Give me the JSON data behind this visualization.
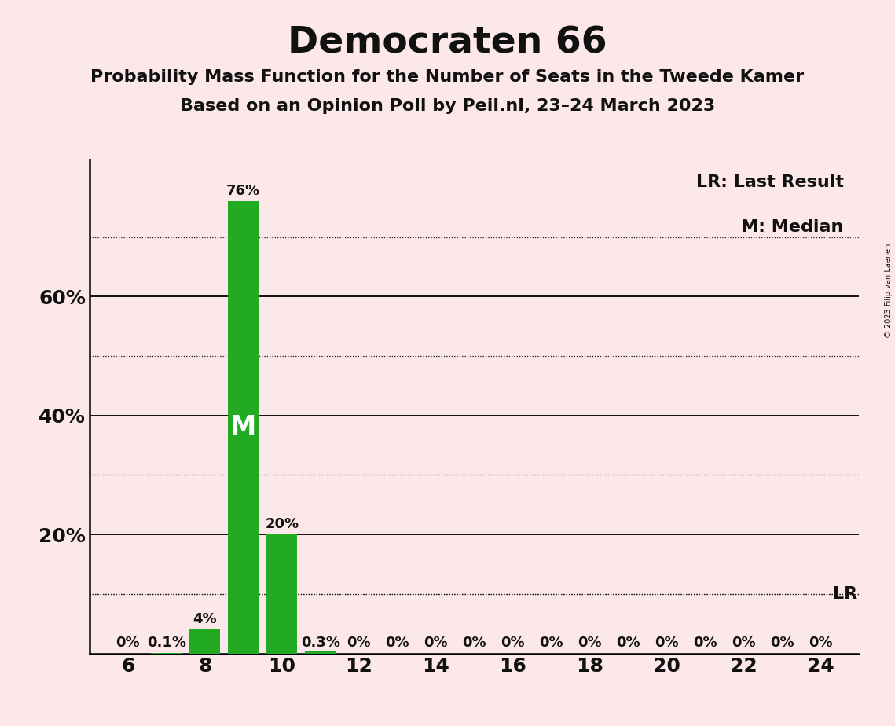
{
  "title": "Democraten 66",
  "subtitle1": "Probability Mass Function for the Number of Seats in the Tweede Kamer",
  "subtitle2": "Based on an Opinion Poll by Peil.nl, 23–24 March 2023",
  "copyright": "© 2023 Filip van Laenen",
  "background_color": "#fce8e8",
  "bar_color": "#22aa22",
  "x_values": [
    6,
    7,
    8,
    9,
    10,
    11,
    12,
    13,
    14,
    15,
    16,
    17,
    18,
    19,
    20,
    21,
    22,
    23,
    24
  ],
  "y_values": [
    0.0,
    0.1,
    4.0,
    76.0,
    20.0,
    0.3,
    0.0,
    0.0,
    0.0,
    0.0,
    0.0,
    0.0,
    0.0,
    0.0,
    0.0,
    0.0,
    0.0,
    0.0,
    0.0
  ],
  "bar_labels": [
    "0%",
    "0.1%",
    "4%",
    "76%",
    "20%",
    "0.3%",
    "0%",
    "0%",
    "0%",
    "0%",
    "0%",
    "0%",
    "0%",
    "0%",
    "0%",
    "0%",
    "0%",
    "0%",
    "0%"
  ],
  "median_seat": 9,
  "last_result_y": 10.0,
  "solid_yticks": [
    20,
    40,
    60
  ],
  "dotted_yticks": [
    10,
    30,
    50,
    70
  ],
  "xlim": [
    5.0,
    25.0
  ],
  "ylim": [
    0,
    83
  ],
  "xlabel_ticks": [
    6,
    8,
    10,
    12,
    14,
    16,
    18,
    20,
    22,
    24
  ],
  "ytick_positions": [
    20,
    40,
    60
  ],
  "ytick_labels": [
    "20%",
    "40%",
    "60%"
  ],
  "legend_lr": "LR: Last Result",
  "legend_m": "M: Median",
  "lr_label": "LR",
  "bar_width": 0.8,
  "title_fontsize": 34,
  "subtitle_fontsize": 16,
  "tick_fontsize": 18,
  "label_fontsize": 13,
  "legend_fontsize": 16,
  "lr_fontsize": 16,
  "m_label_fontsize": 24,
  "copyright_fontsize": 7
}
